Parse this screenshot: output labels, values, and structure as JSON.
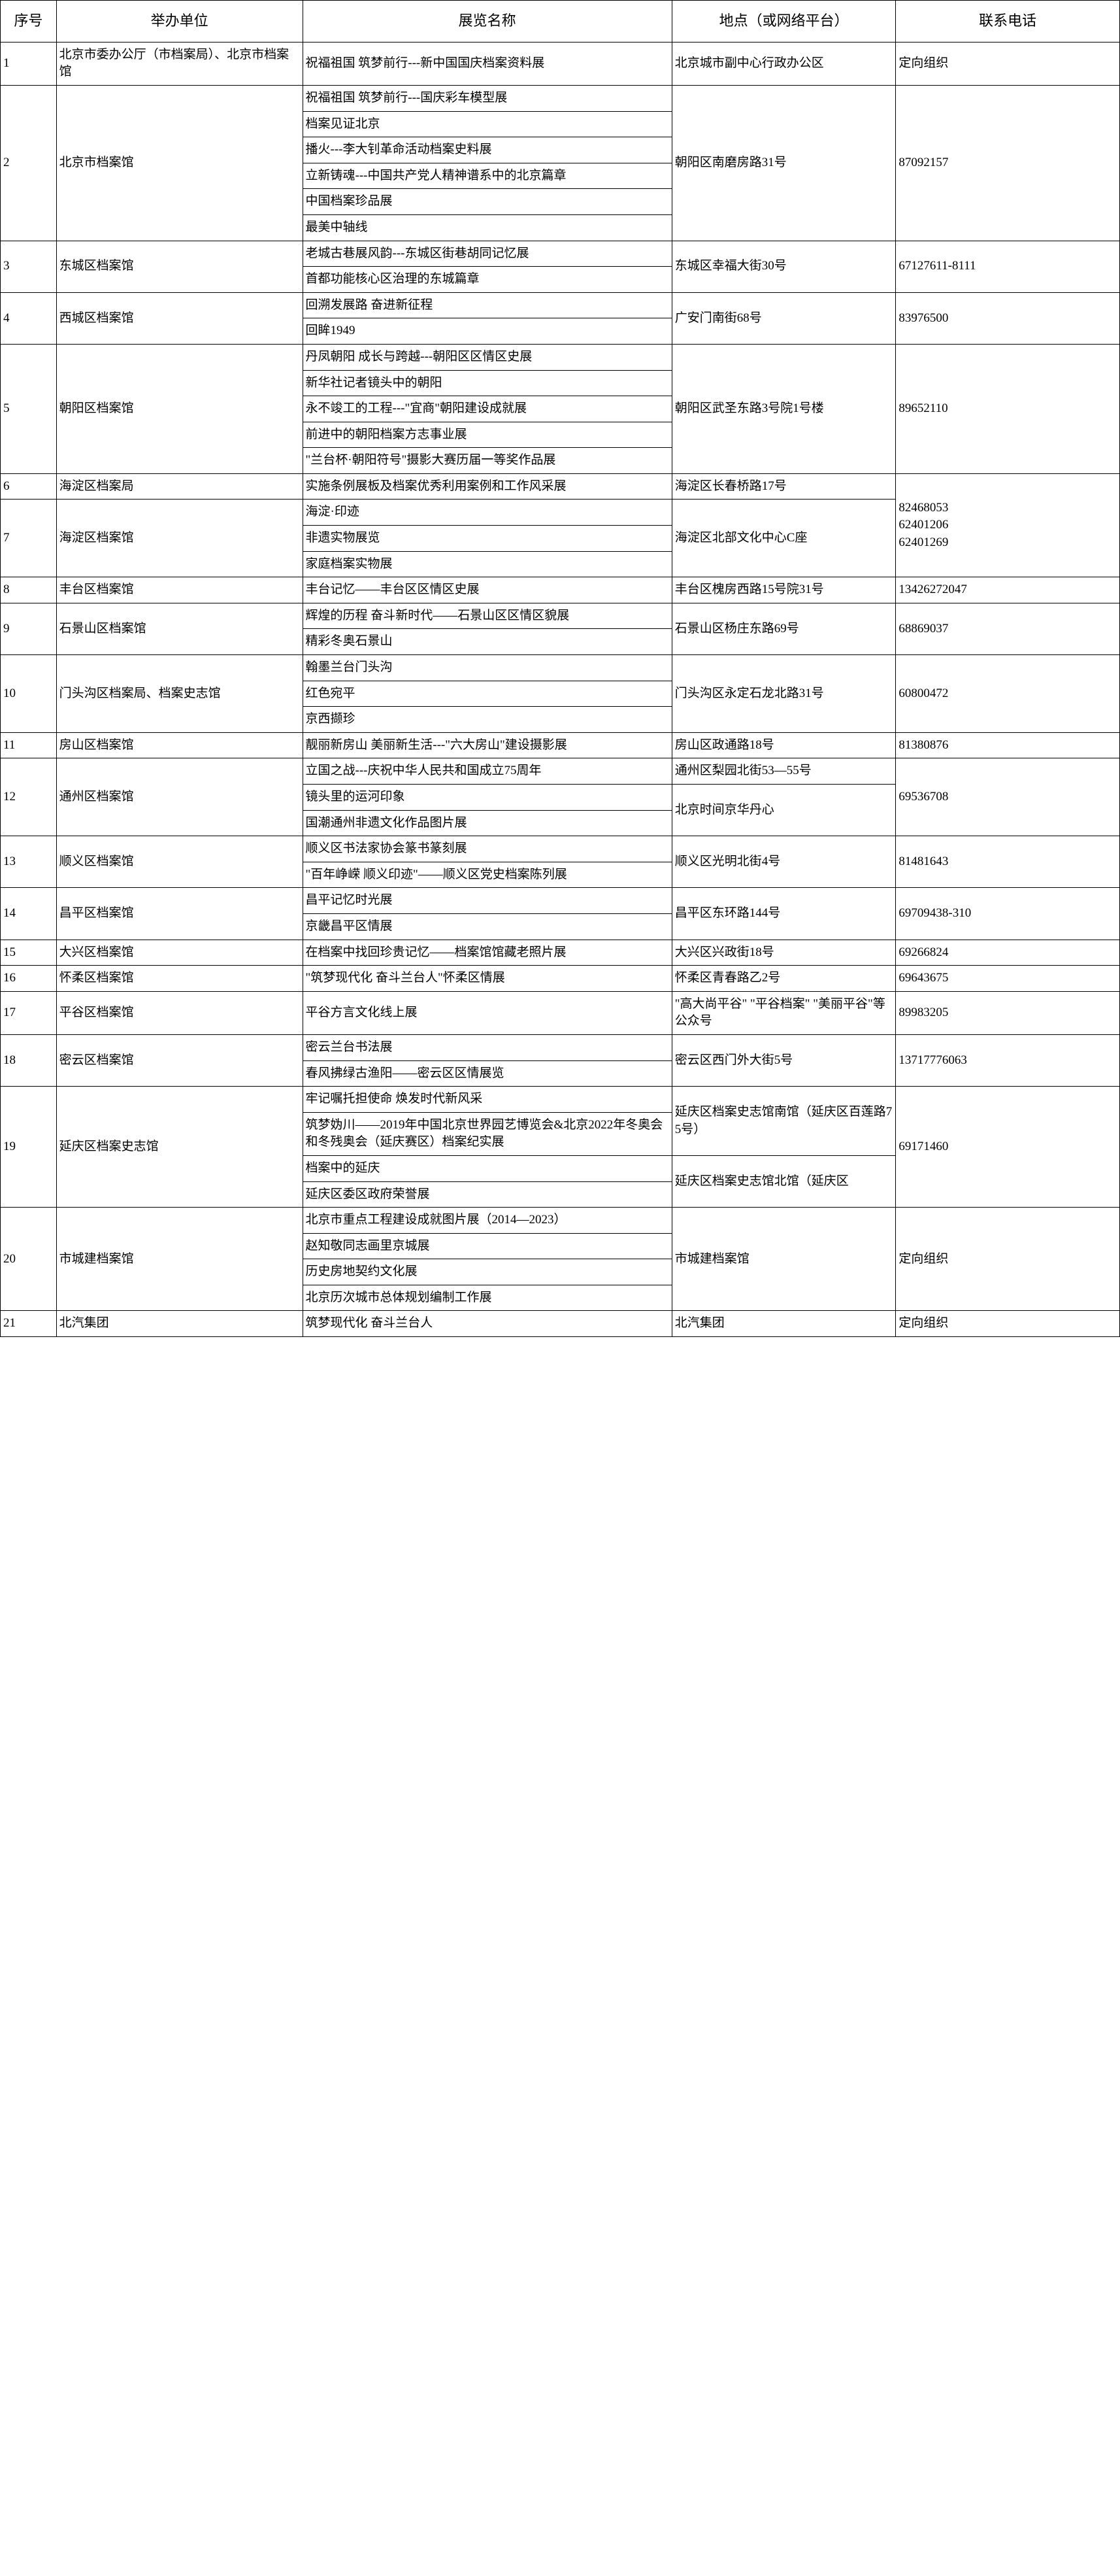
{
  "headers": {
    "num": "序号",
    "org": "举办单位",
    "name": "展览名称",
    "location": "地点（或网络平台）",
    "tel": "联系电话"
  },
  "rows": [
    {
      "num": "1",
      "org": "北京市委办公厅（市档案局）、北京市档案馆",
      "names": [
        "祝福祖国 筑梦前行---新中国国庆档案资料展"
      ],
      "loc": "北京城市副中心行政办公区",
      "tel": "定向组织"
    },
    {
      "num": "2",
      "org": "北京市档案馆",
      "names": [
        "祝福祖国 筑梦前行---国庆彩车模型展",
        "档案见证北京",
        "播火---李大钊革命活动档案史料展",
        "立新铸魂---中国共产党人精神谱系中的北京篇章",
        "中国档案珍品展",
        "最美中轴线"
      ],
      "loc": "朝阳区南磨房路31号",
      "tel": "87092157"
    },
    {
      "num": "3",
      "org": "东城区档案馆",
      "names": [
        "老城古巷展风韵---东城区街巷胡同记忆展",
        "首都功能核心区治理的东城篇章"
      ],
      "loc": "东城区幸福大街30号",
      "tel": "67127611-8111"
    },
    {
      "num": "4",
      "org": "西城区档案馆",
      "names": [
        "回溯发展路 奋进新征程",
        "回眸1949"
      ],
      "loc": "广安门南街68号",
      "tel": "83976500"
    },
    {
      "num": "5",
      "org": "朝阳区档案馆",
      "names": [
        "丹凤朝阳 成长与跨越---朝阳区区情区史展",
        "新华社记者镜头中的朝阳",
        "永不竣工的工程---\"宜商\"朝阳建设成就展",
        "前进中的朝阳档案方志事业展",
        "\"兰台杯·朝阳符号\"摄影大赛历届一等奖作品展"
      ],
      "loc": "朝阳区武圣东路3号院1号楼",
      "tel": "89652110"
    },
    {
      "num": "6",
      "org": "海淀区档案局",
      "names": [
        "实施条例展板及档案优秀利用案例和工作风采展"
      ],
      "loc": "海淀区长春桥路17号",
      "tel": "82468053",
      "telRowspan": 2,
      "telExtra": [
        "62401206",
        "62401269"
      ]
    },
    {
      "num": "7",
      "org": "海淀区档案馆",
      "names": [
        "海淀·印迹",
        "非遗实物展览",
        "家庭档案实物展"
      ],
      "loc": "海淀区北部文化中心C座",
      "noTel": true
    },
    {
      "num": "8",
      "org": "丰台区档案馆",
      "names": [
        "丰台记忆——丰台区区情区史展"
      ],
      "loc": "丰台区槐房西路15号院31号",
      "tel": "13426272047"
    },
    {
      "num": "9",
      "org": "石景山区档案馆",
      "names": [
        "辉煌的历程 奋斗新时代——石景山区区情区貌展",
        "精彩冬奥石景山"
      ],
      "loc": "石景山区杨庄东路69号",
      "tel": "68869037"
    },
    {
      "num": "10",
      "org": "门头沟区档案局、档案史志馆",
      "names": [
        "翰墨兰台门头沟",
        "红色宛平",
        "京西撷珍"
      ],
      "loc": "门头沟区永定石龙北路31号",
      "tel": "60800472"
    },
    {
      "num": "11",
      "org": "房山区档案馆",
      "names": [
        "靓丽新房山 美丽新生活---\"六大房山\"建设摄影展"
      ],
      "loc": "房山区政通路18号",
      "tel": "81380876"
    },
    {
      "num": "12",
      "org": "通州区档案馆",
      "names": [
        "立国之战---庆祝中华人民共和国成立75周年",
        "镜头里的运河印象",
        "国潮通州非遗文化作品图片展"
      ],
      "locs": [
        "通州区梨园北街53—55号",
        "北京时间京华丹心"
      ],
      "locSpans": [
        1,
        2
      ],
      "tel": "69536708"
    },
    {
      "num": "13",
      "org": "顺义区档案馆",
      "names": [
        "顺义区书法家协会篆书篆刻展",
        "\"百年峥嵘 顺义印迹\"——顺义区党史档案陈列展"
      ],
      "loc": "顺义区光明北街4号",
      "tel": "81481643"
    },
    {
      "num": "14",
      "org": "昌平区档案馆",
      "names": [
        "昌平记忆时光展",
        "京畿昌平区情展"
      ],
      "loc": "昌平区东环路144号",
      "tel": "69709438-310"
    },
    {
      "num": "15",
      "org": "大兴区档案馆",
      "names": [
        "在档案中找回珍贵记忆——档案馆馆藏老照片展"
      ],
      "loc": "大兴区兴政街18号",
      "tel": "69266824"
    },
    {
      "num": "16",
      "org": "怀柔区档案馆",
      "names": [
        "\"筑梦现代化 奋斗兰台人\"怀柔区情展"
      ],
      "loc": "怀柔区青春路乙2号",
      "tel": "69643675"
    },
    {
      "num": "17",
      "org": "平谷区档案馆",
      "names": [
        "平谷方言文化线上展"
      ],
      "loc": "\"高大尚平谷\" \"平谷档案\" \"美丽平谷\"等公众号",
      "tel": "89983205"
    },
    {
      "num": "18",
      "org": "密云区档案馆",
      "names": [
        "密云兰台书法展",
        "春风拂绿古渔阳——密云区区情展览"
      ],
      "loc": "密云区西门外大街5号",
      "tel": "13717776063"
    },
    {
      "num": "19",
      "org": "延庆区档案史志馆",
      "names": [
        "牢记嘱托担使命 焕发时代新风采",
        "筑梦妫川——2019年中国北京世界园艺博览会&北京2022年冬奥会和冬残奥会（延庆赛区）档案纪实展",
        "档案中的延庆",
        "延庆区委区政府荣誉展"
      ],
      "locs": [
        "延庆区档案史志馆南馆（延庆区百莲路75号）",
        "延庆区档案史志馆北馆（延庆区"
      ],
      "locSpans": [
        2,
        2
      ],
      "tel": "69171460"
    },
    {
      "num": "20",
      "org": "市城建档案馆",
      "names": [
        "北京市重点工程建设成就图片展（2014—2023）",
        "赵知敬同志画里京城展",
        "历史房地契约文化展",
        "北京历次城市总体规划编制工作展"
      ],
      "loc": "市城建档案馆",
      "tel": "定向组织"
    },
    {
      "num": "21",
      "org": "北汽集团",
      "names": [
        "筑梦现代化 奋斗兰台人"
      ],
      "loc": "北汽集团",
      "tel": "定向组织"
    }
  ]
}
